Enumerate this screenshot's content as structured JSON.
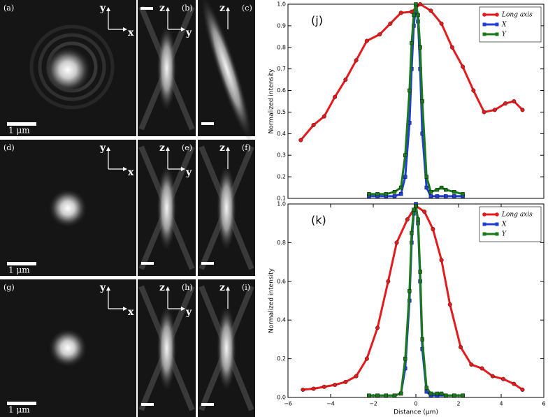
{
  "image_panels": [
    {
      "label": "(a)",
      "axes": [
        "y",
        "x"
      ],
      "scale": "1 μm"
    },
    {
      "label": "(b)",
      "axes": [
        "z",
        "y"
      ]
    },
    {
      "label": "(c)",
      "axes": [
        "z"
      ]
    },
    {
      "label": "(d)",
      "axes": [
        "y",
        "x"
      ],
      "scale": "1 μm"
    },
    {
      "label": "(e)",
      "axes": [
        "z",
        "y"
      ]
    },
    {
      "label": "(f)",
      "axes": [
        "z"
      ]
    },
    {
      "label": "(g)",
      "axes": [
        "y",
        "x"
      ],
      "scale": "1 μm"
    },
    {
      "label": "(h)",
      "axes": [
        "z",
        "y"
      ]
    },
    {
      "label": "(i)",
      "axes": [
        "z"
      ]
    }
  ],
  "chart_data": [
    {
      "type": "line",
      "annotation": "(j)",
      "ylabel": "Normalized intensity",
      "xlim": [
        -6,
        6
      ],
      "ylim": [
        0.1,
        1.0
      ],
      "yticks": [
        0.1,
        0.2,
        0.3,
        0.4,
        0.5,
        0.6,
        0.7,
        0.8,
        0.9,
        {
          "value": 1,
          "label": "1.0"
        }
      ],
      "legend": "upper right",
      "series": [
        {
          "name": "Long axis",
          "color": "#e41a1c",
          "marker": "circle",
          "x": [
            -5.4,
            -4.8,
            -4.3,
            -3.8,
            -3.3,
            -2.8,
            -2.3,
            -1.7,
            -1.2,
            -0.7,
            -0.2,
            0.2,
            0.7,
            1.2,
            1.7,
            2.2,
            2.7,
            3.2,
            3.7,
            4.2,
            4.6,
            5.0
          ],
          "values": [
            0.37,
            0.44,
            0.48,
            0.57,
            0.65,
            0.74,
            0.83,
            0.86,
            0.91,
            0.96,
            0.965,
            1.0,
            0.97,
            0.91,
            0.8,
            0.71,
            0.6,
            0.5,
            0.51,
            0.54,
            0.55,
            0.51
          ]
        },
        {
          "name": "X",
          "color": "#1f3fd6",
          "marker": "square",
          "x": [
            -2.2,
            -1.8,
            -1.4,
            -1.0,
            -0.7,
            -0.5,
            -0.3,
            -0.2,
            -0.1,
            0,
            0.1,
            0.2,
            0.3,
            0.5,
            0.7,
            1.0,
            1.4,
            1.8,
            2.2
          ],
          "values": [
            0.11,
            0.11,
            0.11,
            0.11,
            0.12,
            0.2,
            0.45,
            0.7,
            0.9,
            0.99,
            0.92,
            0.7,
            0.4,
            0.15,
            0.11,
            0.11,
            0.11,
            0.11,
            0.11
          ]
        },
        {
          "name": "Y",
          "color": "#1a7a1a",
          "marker": "square",
          "x": [
            -2.2,
            -1.8,
            -1.4,
            -1.0,
            -0.7,
            -0.5,
            -0.3,
            -0.2,
            -0.1,
            0,
            0.1,
            0.2,
            0.3,
            0.5,
            0.7,
            1.0,
            1.2,
            1.4,
            1.8,
            2.2
          ],
          "values": [
            0.12,
            0.12,
            0.12,
            0.13,
            0.15,
            0.3,
            0.6,
            0.82,
            0.95,
            1.0,
            0.95,
            0.8,
            0.55,
            0.2,
            0.13,
            0.14,
            0.15,
            0.14,
            0.13,
            0.12
          ]
        }
      ]
    },
    {
      "type": "line",
      "annotation": "(k)",
      "ylabel": "Normalized intensity",
      "xlabel": "Distance (μm)",
      "xlim": [
        -6,
        6
      ],
      "ylim": [
        0,
        1.0
      ],
      "xticks": [
        {
          "value": -6,
          "label": "−6"
        },
        {
          "value": -4,
          "label": "−4"
        },
        {
          "value": -2,
          "label": "−2"
        },
        0,
        2,
        4,
        6
      ],
      "yticks": [
        {
          "value": 0,
          "label": "0.0"
        },
        0.2,
        0.4,
        0.6,
        0.8,
        {
          "value": 1,
          "label": "1.0"
        }
      ],
      "legend": "upper right",
      "series": [
        {
          "name": "Long axis",
          "color": "#e41a1c",
          "marker": "circle",
          "x": [
            -5.3,
            -4.8,
            -4.3,
            -3.8,
            -3.3,
            -2.8,
            -2.3,
            -1.8,
            -1.3,
            -0.9,
            -0.4,
            0,
            0.4,
            0.8,
            1.2,
            1.6,
            2.1,
            2.6,
            3.1,
            3.6,
            4.1,
            4.6,
            5.0
          ],
          "values": [
            0.04,
            0.045,
            0.055,
            0.065,
            0.08,
            0.11,
            0.2,
            0.36,
            0.6,
            0.8,
            0.92,
            0.99,
            0.96,
            0.87,
            0.71,
            0.48,
            0.26,
            0.17,
            0.15,
            0.11,
            0.095,
            0.07,
            0.04
          ]
        },
        {
          "name": "X",
          "color": "#1f3fd6",
          "marker": "square",
          "x": [
            -2.2,
            -1.8,
            -1.4,
            -1.0,
            -0.7,
            -0.5,
            -0.3,
            -0.2,
            -0.1,
            0,
            0.1,
            0.2,
            0.3,
            0.5,
            0.7,
            1.0,
            1.4,
            1.8,
            2.2
          ],
          "values": [
            0.01,
            0.01,
            0.01,
            0.01,
            0.02,
            0.15,
            0.5,
            0.8,
            0.95,
            1.0,
            0.9,
            0.6,
            0.25,
            0.03,
            0.01,
            0.01,
            0.01,
            0.01,
            0.01
          ]
        },
        {
          "name": "Y",
          "color": "#1a7a1a",
          "marker": "square",
          "x": [
            -2.2,
            -1.8,
            -1.4,
            -1.0,
            -0.7,
            -0.5,
            -0.3,
            -0.2,
            -0.1,
            0,
            0.1,
            0.2,
            0.3,
            0.5,
            0.7,
            1.0,
            1.2,
            1.4,
            1.8,
            2.2
          ],
          "values": [
            0.01,
            0.01,
            0.01,
            0.01,
            0.02,
            0.2,
            0.55,
            0.85,
            0.97,
            0.99,
            0.92,
            0.65,
            0.3,
            0.05,
            0.02,
            0.02,
            0.02,
            0.01,
            0.01,
            0.01
          ]
        }
      ]
    }
  ]
}
